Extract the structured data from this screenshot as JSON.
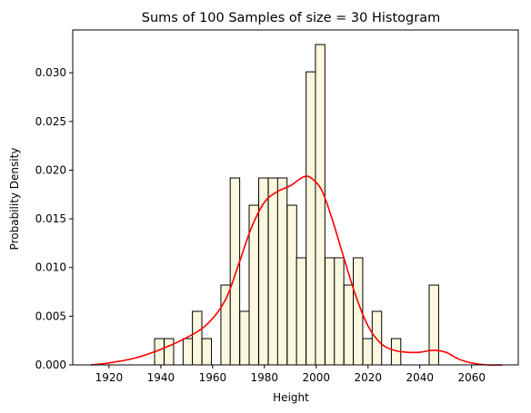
{
  "chart_data": {
    "type": "bar",
    "title": "Sums of 100 Samples of size = 30 Histogram",
    "xlabel": "Height",
    "ylabel": "Probability Density",
    "xlim": [
      1906,
      2078
    ],
    "ylim": [
      0,
      0.0344
    ],
    "xticks": [
      1920,
      1940,
      1960,
      1980,
      2000,
      2020,
      2040,
      2060
    ],
    "yticks": [
      0.0,
      0.005,
      0.01,
      0.015,
      0.02,
      0.025,
      0.03
    ],
    "ytick_labels": [
      "0.000",
      "0.005",
      "0.010",
      "0.015",
      "0.020",
      "0.025",
      "0.030"
    ],
    "grid": false,
    "histogram": {
      "bin_width": 3.65,
      "bin_starts": [
        1937.6,
        1941.3,
        1948.6,
        1952.2,
        1955.9,
        1963.2,
        1966.8,
        1970.5,
        1974.1,
        1977.8,
        1981.5,
        1985.1,
        1988.8,
        1992.4,
        1996.1,
        1999.7,
        2003.4,
        2007.0,
        2010.7,
        2014.3,
        2018.0,
        2021.6,
        2029.0,
        2043.6
      ],
      "densities": [
        0.0027,
        0.0027,
        0.0027,
        0.0055,
        0.0027,
        0.0082,
        0.0192,
        0.0055,
        0.0164,
        0.0192,
        0.0192,
        0.0192,
        0.0164,
        0.011,
        0.0301,
        0.0329,
        0.011,
        0.011,
        0.0082,
        0.011,
        0.0027,
        0.0055,
        0.0027,
        0.0082
      ],
      "fill": "#fcf8e0",
      "edge": "#000000"
    },
    "kde": {
      "color": "#ff0000",
      "x": [
        1913,
        1920,
        1930,
        1940,
        1950,
        1958,
        1965,
        1970,
        1975,
        1980,
        1985,
        1990,
        1995,
        1998,
        2002,
        2006,
        2010,
        2015,
        2020,
        2025,
        2030,
        2035,
        2040,
        2045,
        2050,
        2055,
        2060,
        2066,
        2072
      ],
      "y": [
        0.0,
        0.0002,
        0.0007,
        0.0016,
        0.0028,
        0.0042,
        0.0067,
        0.0103,
        0.0141,
        0.0167,
        0.0178,
        0.0184,
        0.0193,
        0.0192,
        0.018,
        0.0151,
        0.0116,
        0.0073,
        0.004,
        0.0022,
        0.0015,
        0.0013,
        0.0013,
        0.0015,
        0.0013,
        0.0006,
        0.0002,
        0.0,
        0.0
      ]
    }
  }
}
